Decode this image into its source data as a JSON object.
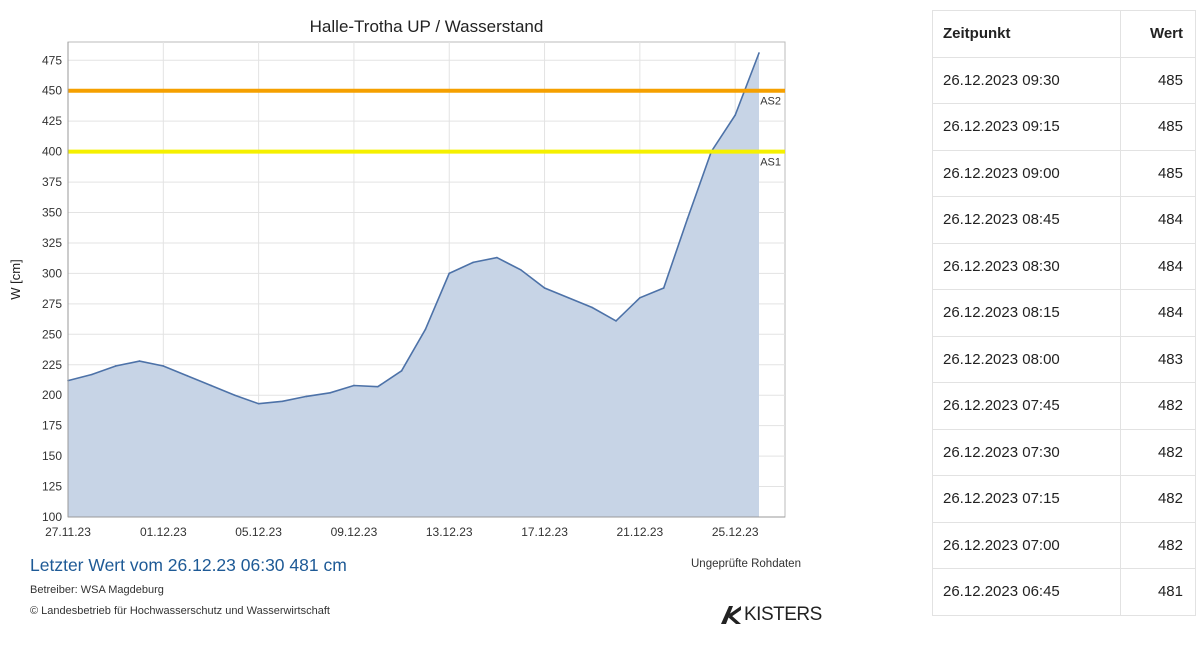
{
  "chart_data": {
    "type": "area",
    "title": "Halle-Trotha UP / Wasserstand",
    "xlabel": "",
    "ylabel": "W [cm]",
    "x_range": [
      "2023-11-27",
      "2023-12-26"
    ],
    "x_ticks": [
      "27.11.23",
      "01.12.23",
      "05.12.23",
      "09.12.23",
      "13.12.23",
      "17.12.23",
      "21.12.23",
      "25.12.23"
    ],
    "ylim": [
      100,
      490
    ],
    "y_ticks": [
      100,
      125,
      150,
      175,
      200,
      225,
      250,
      275,
      300,
      325,
      350,
      375,
      400,
      425,
      450,
      475
    ],
    "grid": true,
    "thresholds": [
      {
        "label": "AS2",
        "value": 450,
        "color": "#f5a000"
      },
      {
        "label": "AS1",
        "value": 400,
        "color": "#f5f000"
      }
    ],
    "series": [
      {
        "color": "#4d72a8",
        "fill": "#c7d4e6",
        "x": [
          "2023-11-27",
          "2023-11-28",
          "2023-11-29",
          "2023-11-30",
          "2023-12-01",
          "2023-12-02",
          "2023-12-03",
          "2023-12-04",
          "2023-12-05",
          "2023-12-06",
          "2023-12-07",
          "2023-12-08",
          "2023-12-09",
          "2023-12-10",
          "2023-12-11",
          "2023-12-12",
          "2023-12-13",
          "2023-12-14",
          "2023-12-15",
          "2023-12-16",
          "2023-12-17",
          "2023-12-18",
          "2023-12-19",
          "2023-12-20",
          "2023-12-21",
          "2023-12-22",
          "2023-12-23",
          "2023-12-24",
          "2023-12-25",
          "2023-12-26"
        ],
        "values": [
          212,
          217,
          224,
          228,
          224,
          216,
          208,
          200,
          193,
          195,
          199,
          202,
          208,
          207,
          220,
          254,
          300,
          309,
          313,
          303,
          288,
          280,
          272,
          261,
          280,
          288,
          345,
          400,
          430,
          481
        ]
      }
    ]
  },
  "footer": {
    "latest_value": "Letzter Wert vom 26.12.23 06:30  481 cm",
    "raw_data_note": "Ungeprüfte Rohdaten",
    "operator": "Betreiber: WSA Magdeburg",
    "copyright": "© Landesbetrieb für Hochwasserschutz und Wasserwirtschaft",
    "brand": "KISTERS"
  },
  "table": {
    "headers": {
      "time": "Zeitpunkt",
      "value": "Wert"
    },
    "rows": [
      {
        "time": "26.12.2023 09:30",
        "value": "485"
      },
      {
        "time": "26.12.2023 09:15",
        "value": "485"
      },
      {
        "time": "26.12.2023 09:00",
        "value": "485"
      },
      {
        "time": "26.12.2023 08:45",
        "value": "484"
      },
      {
        "time": "26.12.2023 08:30",
        "value": "484"
      },
      {
        "time": "26.12.2023 08:15",
        "value": "484"
      },
      {
        "time": "26.12.2023 08:00",
        "value": "483"
      },
      {
        "time": "26.12.2023 07:45",
        "value": "482"
      },
      {
        "time": "26.12.2023 07:30",
        "value": "482"
      },
      {
        "time": "26.12.2023 07:15",
        "value": "482"
      },
      {
        "time": "26.12.2023 07:00",
        "value": "482"
      },
      {
        "time": "26.12.2023 06:45",
        "value": "481"
      }
    ]
  }
}
